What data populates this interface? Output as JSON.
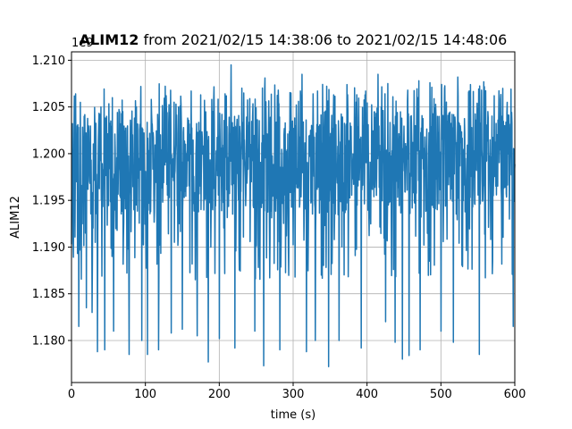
{
  "chart_data": {
    "type": "line",
    "title": {
      "bold": "ALIM12",
      "rest": " from 2021/02/15 14:38:06 to 2021/02/15 14:48:06"
    },
    "xlabel": "time (s)",
    "ylabel": "ALIM12",
    "y_offset_label": "1e9",
    "xlim": [
      0,
      600
    ],
    "ylim": [
      1.1755,
      1.2109
    ],
    "x_ticks": [
      0,
      100,
      200,
      300,
      400,
      500,
      600
    ],
    "x_tick_labels": [
      "0",
      "100",
      "200",
      "300",
      "400",
      "500",
      "600"
    ],
    "y_ticks": [
      1.18,
      1.185,
      1.19,
      1.195,
      1.2,
      1.205,
      1.21
    ],
    "y_tick_labels": [
      "1.180",
      "1.185",
      "1.190",
      "1.195",
      "1.200",
      "1.205",
      "1.210"
    ],
    "grid": true,
    "series": [
      {
        "color": "#1f77b4",
        "x_range": [
          0,
          600
        ],
        "typical_band": [
          1.1935,
          1.2045
        ],
        "envelope_band": [
          1.1865,
          1.2075
        ],
        "low_spikes": [
          [
            10,
            1.1815
          ],
          [
            20,
            1.1835
          ],
          [
            28,
            1.183
          ],
          [
            35,
            1.1788
          ],
          [
            45,
            1.179
          ],
          [
            57,
            1.181
          ],
          [
            78,
            1.1785
          ],
          [
            95,
            1.18
          ],
          [
            103,
            1.1785
          ],
          [
            118,
            1.179
          ],
          [
            135,
            1.1808
          ],
          [
            150,
            1.1812
          ],
          [
            170,
            1.1805
          ],
          [
            185,
            1.1777
          ],
          [
            200,
            1.1802
          ],
          [
            221,
            1.1792
          ],
          [
            248,
            1.181
          ],
          [
            260,
            1.1773
          ],
          [
            282,
            1.179
          ],
          [
            297,
            1.1808
          ],
          [
            318,
            1.1788
          ],
          [
            330,
            1.18
          ],
          [
            348,
            1.1772
          ],
          [
            362,
            1.18
          ],
          [
            392,
            1.1792
          ],
          [
            425,
            1.182
          ],
          [
            438,
            1.1798
          ],
          [
            448,
            1.178
          ],
          [
            457,
            1.1784
          ],
          [
            472,
            1.179
          ],
          [
            500,
            1.181
          ],
          [
            517,
            1.1798
          ],
          [
            540,
            1.18
          ],
          [
            552,
            1.1785
          ],
          [
            572,
            1.1795
          ],
          [
            598,
            1.1815
          ]
        ],
        "high_spikes": [
          [
            12,
            1.2055
          ],
          [
            40,
            1.205
          ],
          [
            65,
            1.2045
          ],
          [
            88,
            1.205
          ],
          [
            108,
            1.2058
          ],
          [
            128,
            1.2062
          ],
          [
            145,
            1.205
          ],
          [
            162,
            1.2067
          ],
          [
            175,
            1.2063
          ],
          [
            190,
            1.2058
          ],
          [
            208,
            1.2064
          ],
          [
            216,
            1.2095
          ],
          [
            233,
            1.2065
          ],
          [
            262,
            1.2081
          ],
          [
            280,
            1.2068
          ],
          [
            297,
            1.2065
          ],
          [
            312,
            1.2085
          ],
          [
            333,
            1.2067
          ],
          [
            355,
            1.2063
          ],
          [
            373,
            1.2074
          ],
          [
            398,
            1.2067
          ],
          [
            415,
            1.2085
          ],
          [
            428,
            1.2075
          ],
          [
            455,
            1.2068
          ],
          [
            470,
            1.2078
          ],
          [
            485,
            1.2076
          ],
          [
            505,
            1.207
          ],
          [
            523,
            1.2082
          ],
          [
            540,
            1.2074
          ],
          [
            558,
            1.2077
          ],
          [
            572,
            1.2062
          ],
          [
            595,
            1.2069
          ]
        ]
      }
    ]
  }
}
